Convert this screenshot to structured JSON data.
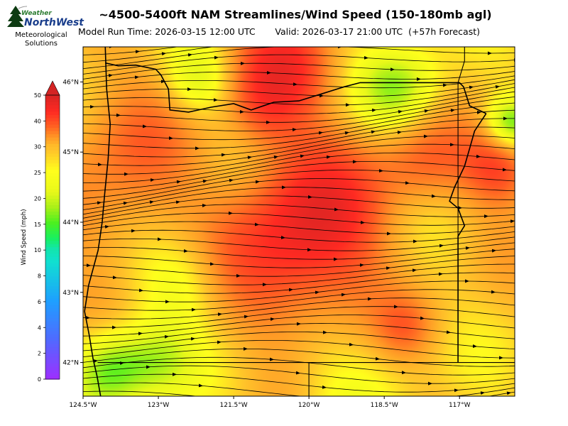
{
  "header": {
    "title": "~4500-5400ft NAM Streamlines/Wind Speed (150-180mb agl)",
    "subtitle": "Model Run Time: 2026-03-15 12:00 UTC       Valid: 2026-03-17 21:00 UTC  (+57h Forecast)"
  },
  "logo": {
    "word1": "Weather",
    "word2": "NorthWest",
    "line1": "Meteorological",
    "line2": "Solutions"
  },
  "chart_data": {
    "type": "heatmap",
    "title": "~4500-5400ft NAM Streamlines/Wind Speed (150-180mb agl)",
    "x_ticks": [
      {
        "lon": -124.5,
        "label": "124.5°W"
      },
      {
        "lon": -123.0,
        "label": "123°W"
      },
      {
        "lon": -121.5,
        "label": "121.5°W"
      },
      {
        "lon": -120.0,
        "label": "120°W"
      },
      {
        "lon": -118.5,
        "label": "118.5°W"
      },
      {
        "lon": -117.0,
        "label": "117°W"
      }
    ],
    "y_ticks": [
      {
        "lat": 46,
        "label": "46°N"
      },
      {
        "lat": 45,
        "label": "45°N"
      },
      {
        "lat": 44,
        "label": "44°N"
      },
      {
        "lat": 43,
        "label": "43°N"
      },
      {
        "lat": 42,
        "label": "42°N"
      }
    ],
    "xlim": [
      -124.5,
      -115.9
    ],
    "ylim": [
      41.52,
      46.5
    ],
    "colorbar": {
      "label": "Wind Speed (mph)",
      "ticks": [
        0,
        2,
        4,
        6,
        8,
        10,
        15,
        20,
        25,
        30,
        40,
        50
      ],
      "range": [
        0,
        50
      ],
      "stops": [
        {
          "v": 0,
          "c": "#9b30ff"
        },
        {
          "v": 3,
          "c": "#4f6bff"
        },
        {
          "v": 6,
          "c": "#1ea0ff"
        },
        {
          "v": 9,
          "c": "#10e0d0"
        },
        {
          "v": 12,
          "c": "#18f060"
        },
        {
          "v": 15,
          "c": "#4cf020"
        },
        {
          "v": 18,
          "c": "#a8f018"
        },
        {
          "v": 21,
          "c": "#e8f81a"
        },
        {
          "v": 25,
          "c": "#ffff1c"
        },
        {
          "v": 29,
          "c": "#ffc42a"
        },
        {
          "v": 33,
          "c": "#ff9a26"
        },
        {
          "v": 38,
          "c": "#ff5a22"
        },
        {
          "v": 43,
          "c": "#ff2a22"
        },
        {
          "v": 50,
          "c": "#d42424"
        }
      ]
    },
    "speed_field": {
      "background_mph": 29,
      "features": [
        {
          "lon": -120.4,
          "lat": 43.5,
          "r": 1.1,
          "a": 13
        },
        {
          "lon": -119.6,
          "lat": 44.4,
          "r": 1.0,
          "a": 8
        },
        {
          "lon": -120.5,
          "lat": 46.25,
          "r": 0.7,
          "a": 12
        },
        {
          "lon": -120.9,
          "lat": 45.6,
          "r": 0.5,
          "a": 6
        },
        {
          "lon": -116.2,
          "lat": 44.8,
          "r": 0.5,
          "a": 12
        },
        {
          "lon": -117.7,
          "lat": 44.9,
          "r": 0.6,
          "a": 7
        },
        {
          "lon": -118.1,
          "lat": 42.5,
          "r": 0.4,
          "a": 6
        },
        {
          "lon": -123.6,
          "lat": 45.0,
          "r": 1.0,
          "a": 6
        },
        {
          "lon": -124.0,
          "lat": 43.8,
          "r": 0.8,
          "a": 4
        },
        {
          "lon": -124.0,
          "lat": 41.9,
          "r": 0.55,
          "a": -14
        },
        {
          "lon": -122.5,
          "lat": 43.2,
          "r": 0.65,
          "a": -8
        },
        {
          "lon": -123.0,
          "lat": 42.0,
          "r": 0.5,
          "a": -6
        },
        {
          "lon": -118.2,
          "lat": 45.9,
          "r": 0.6,
          "a": -11
        },
        {
          "lon": -116.0,
          "lat": 45.4,
          "r": 0.35,
          "a": -14
        },
        {
          "lon": -122.2,
          "lat": 46.0,
          "r": 0.45,
          "a": -8
        },
        {
          "lon": -119.1,
          "lat": 41.8,
          "r": 0.8,
          "a": -4
        },
        {
          "lon": -121.3,
          "lat": 41.8,
          "r": 0.7,
          "a": -3
        }
      ]
    },
    "streamlines": {
      "count": 52,
      "arrows": true,
      "color": "#000000"
    },
    "boundaries": {
      "color": "#000000",
      "coast": [
        [
          -124.06,
          46.55
        ],
        [
          -124.03,
          45.9
        ],
        [
          -123.96,
          45.4
        ],
        [
          -124.0,
          44.9
        ],
        [
          -124.07,
          44.4
        ],
        [
          -124.12,
          44.0
        ],
        [
          -124.2,
          43.6
        ],
        [
          -124.39,
          43.1
        ],
        [
          -124.47,
          42.73
        ],
        [
          -124.38,
          42.4
        ],
        [
          -124.3,
          42.05
        ],
        [
          -124.22,
          41.8
        ],
        [
          -124.15,
          41.52
        ]
      ],
      "wa_or": [
        [
          -124.06,
          46.27
        ],
        [
          -123.8,
          46.23
        ],
        [
          -123.45,
          46.24
        ],
        [
          -123.05,
          46.18
        ],
        [
          -122.95,
          46.1
        ],
        [
          -122.8,
          45.9
        ],
        [
          -122.77,
          45.6
        ],
        [
          -122.4,
          45.57
        ],
        [
          -121.95,
          45.64
        ],
        [
          -121.5,
          45.69
        ],
        [
          -121.15,
          45.6
        ],
        [
          -120.7,
          45.71
        ],
        [
          -120.2,
          45.73
        ],
        [
          -119.7,
          45.84
        ],
        [
          -119.3,
          45.93
        ],
        [
          -118.98,
          45.99
        ],
        [
          -117.0,
          45.99
        ],
        [
          -116.92,
          45.93
        ],
        [
          -116.8,
          45.66
        ],
        [
          -116.47,
          45.55
        ]
      ],
      "or_id": [
        [
          -116.47,
          45.55
        ],
        [
          -116.7,
          45.3
        ],
        [
          -116.8,
          45.05
        ],
        [
          -116.9,
          44.8
        ],
        [
          -117.1,
          44.5
        ],
        [
          -117.2,
          44.3
        ],
        [
          -117.03,
          44.2
        ],
        [
          -116.9,
          43.95
        ],
        [
          -117.03,
          43.8
        ],
        [
          -117.03,
          42.0
        ]
      ],
      "or_south": [
        [
          -124.21,
          42.0
        ],
        [
          -115.9,
          42.0
        ]
      ],
      "ca_nv": [
        [
          -120.0,
          42.0
        ],
        [
          -120.0,
          41.52
        ]
      ],
      "id_nv_east": [
        [
          -117.03,
          43.0
        ],
        [
          -117.03,
          45.99
        ],
        [
          -116.9,
          46.3
        ],
        [
          -116.9,
          46.55
        ]
      ]
    }
  }
}
